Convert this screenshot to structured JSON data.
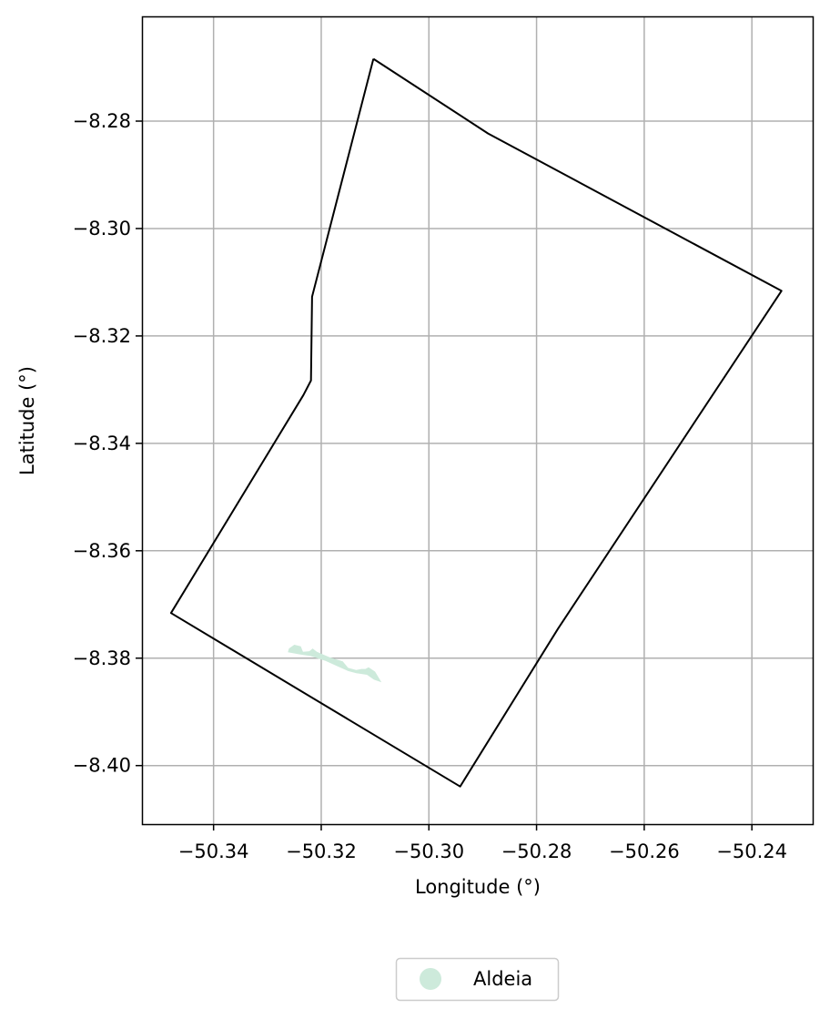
{
  "chart_data": {
    "type": "map",
    "xlabel": "Longitude (°)",
    "ylabel": "Latitude (°)",
    "xlim": [
      -50.3533,
      -50.2287
    ],
    "ylim": [
      -8.4109,
      -8.2605
    ],
    "x_ticks": [
      -50.34,
      -50.32,
      -50.3,
      -50.28,
      -50.26,
      -50.24
    ],
    "x_tick_labels": [
      "−50.34",
      "−50.32",
      "−50.30",
      "−50.28",
      "−50.26",
      "−50.24"
    ],
    "y_ticks": [
      -8.28,
      -8.3,
      -8.32,
      -8.34,
      -8.36,
      -8.38,
      -8.4
    ],
    "y_tick_labels": [
      "−8.28",
      "−8.30",
      "−8.32",
      "−8.34",
      "−8.36",
      "−8.38",
      "−8.40"
    ],
    "grid": true,
    "boundary": {
      "stroke": "#000000",
      "coordinates": [
        [
          -50.3103,
          -8.2684
        ],
        [
          -50.289,
          -8.2823
        ],
        [
          -50.2345,
          -8.3116
        ],
        [
          -50.276,
          -8.3745
        ],
        [
          -50.2942,
          -8.4039
        ],
        [
          -50.3479,
          -8.3716
        ],
        [
          -50.3233,
          -8.331
        ],
        [
          -50.3219,
          -8.3283
        ],
        [
          -50.3217,
          -8.3127
        ],
        [
          -50.3103,
          -8.2684
        ]
      ]
    },
    "features": [
      {
        "class": "Aldeia",
        "color": "#cdeadb",
        "coordinates": [
          [
            -50.326,
            -8.3782
          ],
          [
            -50.325,
            -8.3775
          ],
          [
            -50.3238,
            -8.3778
          ],
          [
            -50.3234,
            -8.3788
          ],
          [
            -50.3222,
            -8.3787
          ],
          [
            -50.3216,
            -8.3782
          ],
          [
            -50.3208,
            -8.3788
          ],
          [
            -50.3185,
            -8.3798
          ],
          [
            -50.316,
            -8.3806
          ],
          [
            -50.315,
            -8.3818
          ],
          [
            -50.3135,
            -8.3822
          ],
          [
            -50.3125,
            -8.382
          ],
          [
            -50.3118,
            -8.382
          ],
          [
            -50.3112,
            -8.3817
          ],
          [
            -50.31,
            -8.3825
          ],
          [
            -50.3088,
            -8.3845
          ],
          [
            -50.3102,
            -8.384
          ],
          [
            -50.3115,
            -8.3831
          ],
          [
            -50.3135,
            -8.3828
          ],
          [
            -50.315,
            -8.3824
          ],
          [
            -50.317,
            -8.3815
          ],
          [
            -50.3192,
            -8.3805
          ],
          [
            -50.322,
            -8.3796
          ],
          [
            -50.324,
            -8.3793
          ],
          [
            -50.3262,
            -8.3789
          ]
        ]
      }
    ],
    "legend": {
      "placement": "bottom-center",
      "entries": [
        {
          "label": "Aldeia",
          "color": "#cdeadb"
        }
      ]
    }
  }
}
